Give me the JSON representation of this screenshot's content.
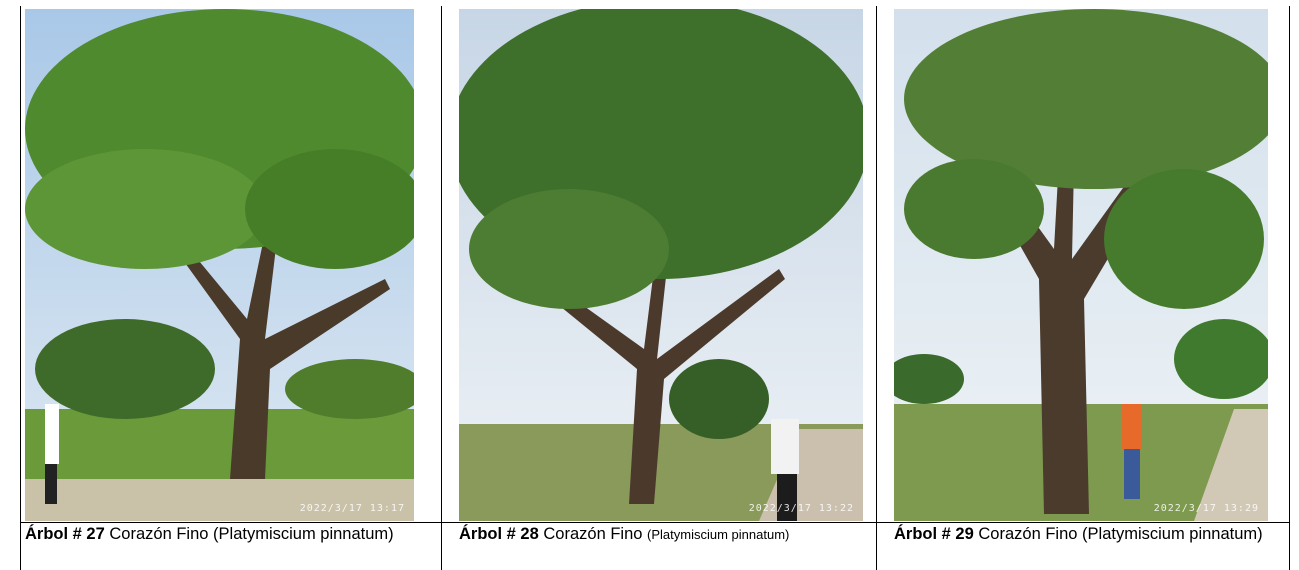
{
  "photos": [
    {
      "label": "Árbol # 27",
      "name": "Corazón Fino",
      "species": "(Platymiscium pinnatum)",
      "timestamp": "2022/3/17 13:17"
    },
    {
      "label": "Árbol # 28",
      "name": "Corazón Fino",
      "species": "(Platymiscium pinnatum)",
      "timestamp": "2022/3/17 13:22"
    },
    {
      "label": "Árbol # 29",
      "name": "Corazón Fino",
      "species": "(Platymiscium pinnatum)",
      "timestamp": "2022/3/17 13:29"
    }
  ]
}
